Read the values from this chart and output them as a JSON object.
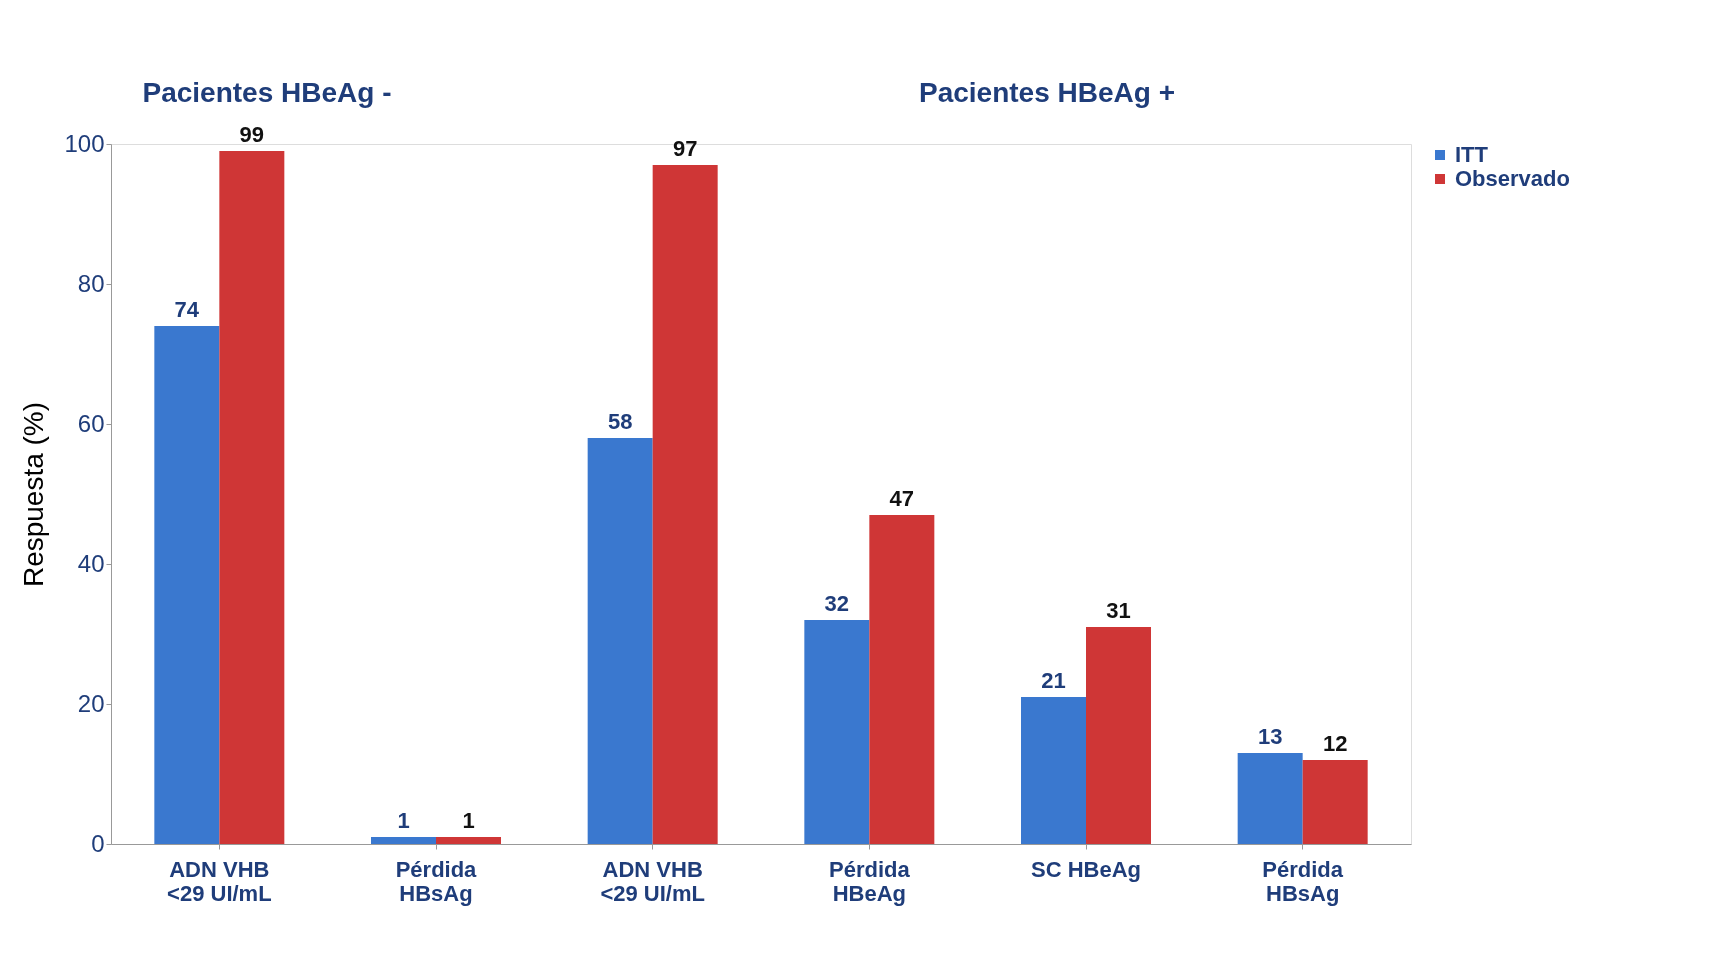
{
  "chart_data": {
    "type": "bar",
    "ylabel": "Respuesta (%)",
    "categories": [
      "ADN VHB\n<29 UI/mL",
      "Pérdida\nHBsAg",
      "ADN VHB\n<29 UI/mL",
      "Pérdida\nHBeAg",
      "SC HBeAg",
      "Pérdida\nHBsAg"
    ],
    "series": [
      {
        "name": "ITT",
        "color": "#3a78cf",
        "values": [
          74,
          1,
          58,
          32,
          21,
          13
        ]
      },
      {
        "name": "Observado",
        "color": "#cf3636",
        "values": [
          99,
          1,
          97,
          47,
          31,
          12
        ]
      }
    ],
    "ylim": [
      0,
      100
    ],
    "yticks": [
      0,
      20,
      40,
      60,
      80,
      100
    ],
    "grid": false,
    "legend": "right",
    "data_labels": true,
    "annotations": [
      "Pacientes HBeAg -",
      "Pacientes HBeAg +"
    ]
  }
}
